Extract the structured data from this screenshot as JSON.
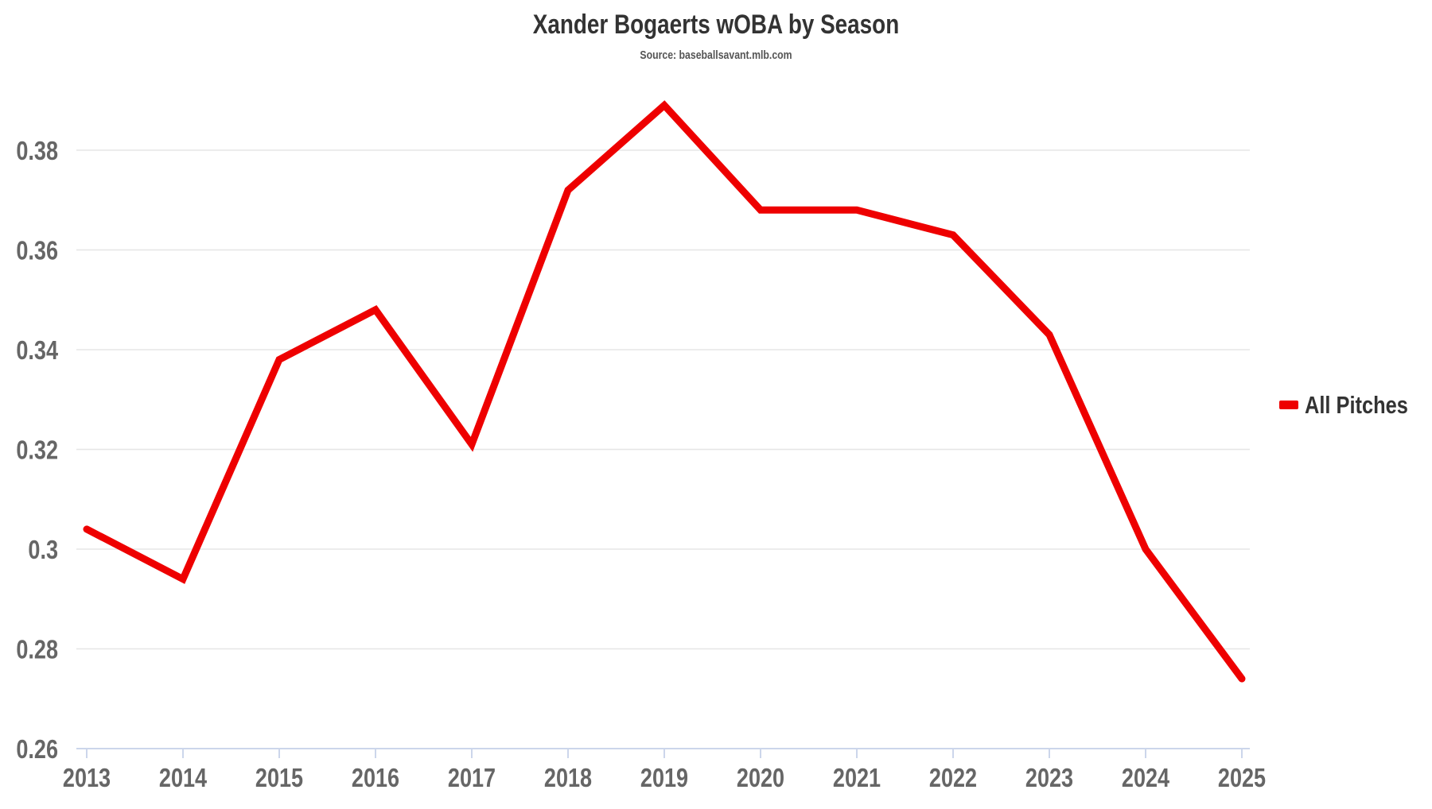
{
  "header": {
    "title": "Xander Bogaerts wOBA by Season",
    "subtitle": "Source: baseballsavant.mlb.com"
  },
  "legend": {
    "items": [
      {
        "label": "All Pitches",
        "color": "#ee0000"
      }
    ]
  },
  "colors": {
    "series": "#ee0000",
    "grid": "#e6e6e6",
    "axis": "#ccd6eb",
    "tick_label": "#666666",
    "title": "#333333"
  },
  "chart_data": {
    "type": "line",
    "title": "Xander Bogaerts wOBA by Season",
    "subtitle": "Source: baseballsavant.mlb.com",
    "xlabel": "",
    "ylabel": "",
    "categories": [
      "2013",
      "2014",
      "2015",
      "2016",
      "2017",
      "2018",
      "2019",
      "2020",
      "2021",
      "2022",
      "2023",
      "2024",
      "2025"
    ],
    "series": [
      {
        "name": "All Pitches",
        "color": "#ee0000",
        "values": [
          0.304,
          0.294,
          0.338,
          0.348,
          0.321,
          0.372,
          0.389,
          0.368,
          0.368,
          0.363,
          0.343,
          0.3,
          0.274
        ]
      }
    ],
    "ylim": [
      0.26,
      0.39
    ],
    "yticks": [
      "0.26",
      "0.28",
      "0.3",
      "0.32",
      "0.34",
      "0.36",
      "0.38"
    ],
    "ytick_values": [
      0.26,
      0.28,
      0.3,
      0.32,
      0.34,
      0.36,
      0.38
    ],
    "grid": true,
    "legend_position": "right"
  }
}
